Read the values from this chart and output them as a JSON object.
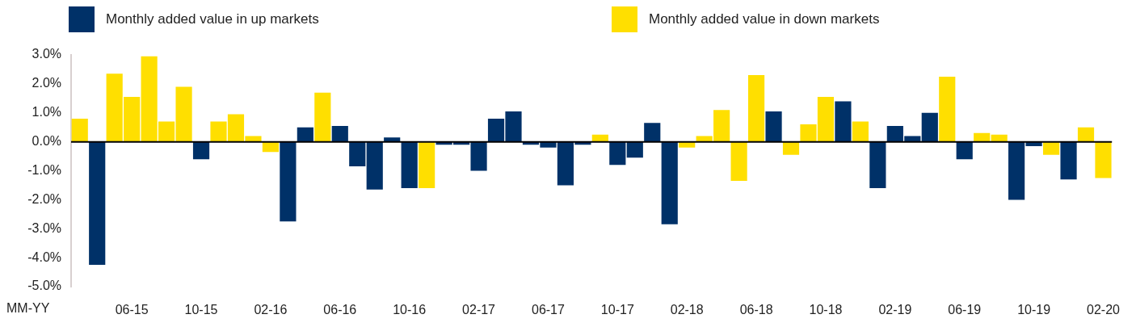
{
  "chart_data": {
    "type": "bar",
    "xlabel": "MM-YY",
    "stacked": true,
    "legend": "top",
    "grid": false,
    "categories": [
      null,
      null,
      null,
      "06-15",
      null,
      null,
      null,
      "10-15",
      null,
      null,
      null,
      "02-16",
      null,
      null,
      null,
      "06-16",
      null,
      null,
      null,
      "10-16",
      null,
      null,
      null,
      "02-17",
      null,
      null,
      null,
      "06-17",
      null,
      null,
      null,
      "10-17",
      null,
      null,
      null,
      "02-18",
      null,
      null,
      null,
      "06-18",
      null,
      null,
      null,
      "10-18",
      null,
      null,
      null,
      "02-19",
      null,
      null,
      null,
      "06-19",
      null,
      null,
      null,
      "10-19",
      null,
      null,
      null,
      "02-20"
    ],
    "ylim": [
      -5,
      3
    ],
    "ref_lines": [
      {
        "axis": "y",
        "value": 0,
        "color": "#000000"
      }
    ],
    "yticks": [
      {
        "value": -5,
        "label": "-5.0%"
      },
      {
        "value": -4,
        "label": "-4.0%"
      },
      {
        "value": -3,
        "label": "-3.0%"
      },
      {
        "value": -2,
        "label": "-2.0%"
      },
      {
        "value": -1,
        "label": "-1.0%"
      },
      {
        "value": 0,
        "label": "0.0%"
      },
      {
        "value": 1,
        "label": "1.0%"
      },
      {
        "value": 2,
        "label": "2.0%"
      },
      {
        "value": 3,
        "label": "3.0%"
      }
    ],
    "series": [
      {
        "name": "Monthly added value in up markets",
        "color": "#003168",
        "values": [
          null,
          -4.25,
          null,
          null,
          null,
          null,
          null,
          -0.6,
          null,
          null,
          null,
          null,
          -2.75,
          0.5,
          null,
          0.55,
          -0.85,
          -1.65,
          0.15,
          -1.6,
          null,
          -0.1,
          -0.1,
          -1.0,
          0.8,
          1.05,
          -0.1,
          -0.2,
          -1.5,
          -0.1,
          null,
          -0.8,
          -0.55,
          0.65,
          -2.85,
          null,
          null,
          null,
          null,
          null,
          1.05,
          null,
          null,
          null,
          1.4,
          null,
          -1.6,
          0.55,
          0.2,
          1.0,
          null,
          -0.6,
          null,
          null,
          -2.0,
          -0.15,
          null,
          -1.3,
          null,
          null
        ]
      },
      {
        "name": "Monthly added value in down markets",
        "color": "#ffdf00",
        "values": [
          0.8,
          null,
          2.35,
          1.55,
          2.95,
          0.7,
          1.9,
          null,
          0.7,
          0.95,
          0.2,
          -0.35,
          null,
          null,
          1.7,
          null,
          null,
          null,
          null,
          null,
          -1.6,
          null,
          null,
          null,
          null,
          null,
          null,
          null,
          null,
          null,
          0.25,
          null,
          null,
          null,
          null,
          -0.2,
          0.2,
          1.1,
          -1.35,
          2.3,
          null,
          -0.45,
          0.6,
          1.55,
          null,
          0.7,
          null,
          null,
          null,
          null,
          2.25,
          null,
          0.3,
          0.25,
          null,
          null,
          -0.45,
          null,
          0.5,
          -1.25
        ]
      }
    ]
  }
}
